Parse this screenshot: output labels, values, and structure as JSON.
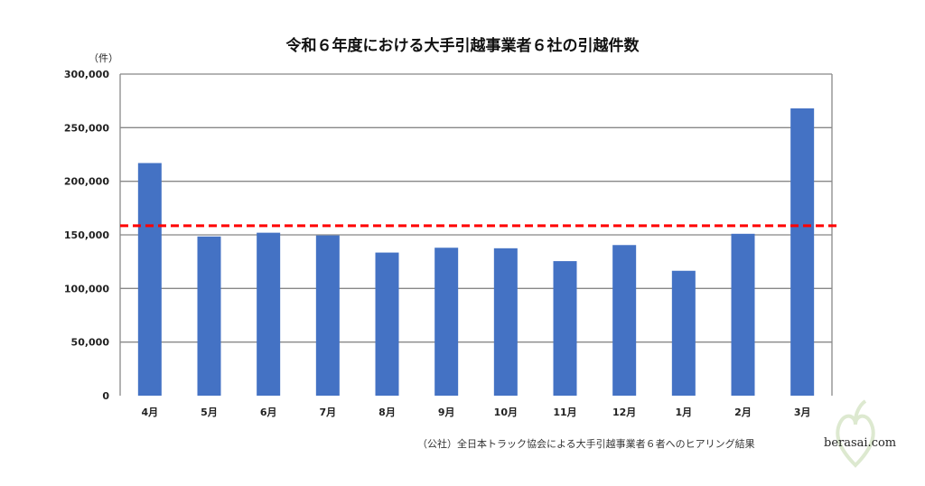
{
  "chart_data": {
    "type": "bar",
    "title": "令和６年度における大手引越事業者６社の引越件数",
    "ylabel": "（件）",
    "categories": [
      "4月",
      "5月",
      "6月",
      "7月",
      "8月",
      "9月",
      "10月",
      "11月",
      "12月",
      "1月",
      "2月",
      "3月"
    ],
    "values": [
      217000,
      148500,
      152000,
      149500,
      133500,
      138000,
      137500,
      125500,
      140500,
      116500,
      151000,
      268000
    ],
    "reference_line": 158500,
    "ylim": [
      0,
      300000
    ],
    "yticks": [
      0,
      50000,
      100000,
      150000,
      200000,
      250000,
      300000
    ],
    "ytick_labels": [
      "0",
      "50,000",
      "100,000",
      "150,000",
      "200,000",
      "250,000",
      "300,000"
    ],
    "grid": true,
    "bar_color": "#4472c4",
    "reference_color": "#ff0000"
  },
  "footnote": "（公社）全日本トラック協会による大手引越事業者６者へのヒアリング結果",
  "watermark": "berasai.com"
}
